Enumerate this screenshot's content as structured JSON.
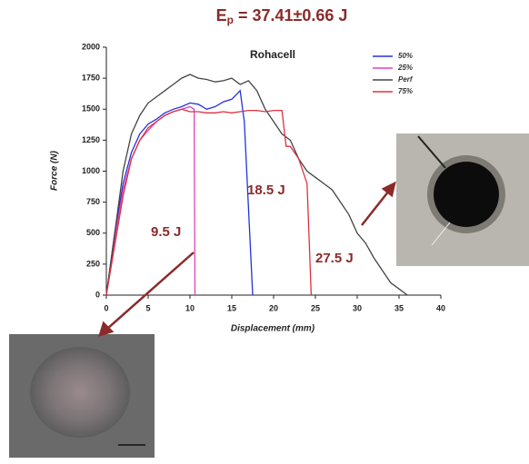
{
  "chart_data": {
    "type": "line",
    "title": {
      "base": "E",
      "subscript": "p",
      "rest": " = 37.41±0.66 J"
    },
    "subtitle": "Rohacell",
    "xlabel": "Displacement (mm)",
    "ylabel": "Force (N)",
    "xlim": [
      0,
      40
    ],
    "xticks": [
      0,
      5,
      10,
      15,
      20,
      25,
      30,
      35,
      40
    ],
    "ylim": [
      0,
      2000
    ],
    "yticks": [
      0,
      250,
      500,
      750,
      1000,
      1250,
      1500,
      1750,
      2000
    ],
    "legend": "upper right",
    "series": [
      {
        "name": "50%",
        "color": "#2233dd",
        "x": [
          0,
          1,
          2,
          3,
          4,
          5,
          6,
          7,
          8,
          9,
          10,
          11,
          12,
          13,
          14,
          15,
          16,
          16.5,
          17.5
        ],
        "values": [
          0,
          500,
          900,
          1150,
          1300,
          1380,
          1420,
          1470,
          1500,
          1520,
          1550,
          1540,
          1500,
          1520,
          1560,
          1580,
          1650,
          1400,
          0
        ]
      },
      {
        "name": "25%",
        "color": "#e040c0",
        "x": [
          0,
          1,
          2,
          3,
          4,
          5,
          6,
          7,
          8,
          9,
          10,
          10.5,
          10.6
        ],
        "values": [
          0,
          450,
          850,
          1100,
          1250,
          1330,
          1400,
          1450,
          1480,
          1500,
          1520,
          1500,
          0
        ]
      },
      {
        "name": "Perf",
        "color": "#444444",
        "x": [
          0,
          1,
          2,
          3,
          4,
          5,
          6,
          7,
          8,
          9,
          10,
          11,
          12,
          13,
          14,
          15,
          16,
          17,
          18,
          19,
          20,
          21,
          22,
          23,
          24,
          25,
          26,
          27,
          28,
          29,
          30,
          31,
          32,
          33,
          34,
          35,
          36
        ],
        "values": [
          0,
          500,
          1000,
          1300,
          1450,
          1550,
          1600,
          1650,
          1700,
          1750,
          1780,
          1750,
          1740,
          1720,
          1730,
          1750,
          1700,
          1730,
          1650,
          1500,
          1400,
          1300,
          1250,
          1100,
          1000,
          950,
          900,
          850,
          750,
          650,
          500,
          420,
          300,
          200,
          100,
          50,
          0
        ]
      },
      {
        "name": "75%",
        "color": "#e03040",
        "x": [
          0,
          1,
          2,
          3,
          4,
          5,
          6,
          7,
          8,
          9,
          10,
          11,
          12,
          13,
          14,
          15,
          16,
          17,
          18,
          19,
          20,
          21,
          21.5,
          22,
          23,
          24,
          24.5
        ],
        "values": [
          0,
          400,
          800,
          1100,
          1250,
          1350,
          1400,
          1450,
          1480,
          1500,
          1480,
          1480,
          1470,
          1470,
          1480,
          1470,
          1480,
          1490,
          1490,
          1480,
          1490,
          1490,
          1200,
          1200,
          1100,
          900,
          0
        ]
      }
    ],
    "annotations": [
      "9.5 J",
      "18.5 J",
      "27.5 J"
    ]
  }
}
